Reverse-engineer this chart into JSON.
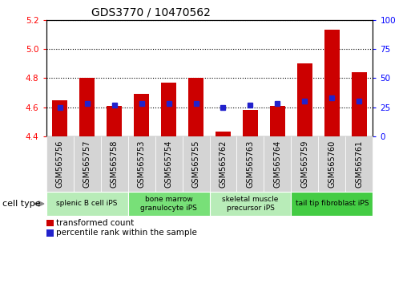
{
  "title": "GDS3770 / 10470562",
  "samples": [
    "GSM565756",
    "GSM565757",
    "GSM565758",
    "GSM565753",
    "GSM565754",
    "GSM565755",
    "GSM565762",
    "GSM565763",
    "GSM565764",
    "GSM565759",
    "GSM565760",
    "GSM565761"
  ],
  "transformed_count": [
    4.65,
    4.8,
    4.61,
    4.69,
    4.77,
    4.8,
    4.43,
    4.58,
    4.61,
    4.9,
    5.13,
    4.84
  ],
  "percentile_rank": [
    25,
    28,
    27,
    28,
    28,
    28,
    25,
    27,
    28,
    30,
    33,
    30
  ],
  "cell_types": [
    {
      "label": "splenic B cell iPS",
      "start": 0,
      "end": 3,
      "color": "#b8ecb8"
    },
    {
      "label": "bone marrow\ngranulocyte iPS",
      "start": 3,
      "end": 6,
      "color": "#78e078"
    },
    {
      "label": "skeletal muscle\nprecursor iPS",
      "start": 6,
      "end": 9,
      "color": "#b8ecb8"
    },
    {
      "label": "tail tip fibroblast iPS",
      "start": 9,
      "end": 12,
      "color": "#44cc44"
    }
  ],
  "ylim_left": [
    4.4,
    5.2
  ],
  "ylim_right": [
    0,
    100
  ],
  "yticks_left": [
    4.4,
    4.6,
    4.8,
    5.0,
    5.2
  ],
  "yticks_right": [
    0,
    25,
    50,
    75,
    100
  ],
  "bar_color": "#cc0000",
  "dot_color": "#2222cc",
  "bar_width": 0.55,
  "baseline": 4.4,
  "legend_labels": [
    "transformed count",
    "percentile rank within the sample"
  ],
  "legend_colors": [
    "#cc0000",
    "#2222cc"
  ],
  "sample_box_color": "#d4d4d4",
  "title_fontsize": 10,
  "tick_fontsize": 7.5,
  "sample_fontsize": 7
}
